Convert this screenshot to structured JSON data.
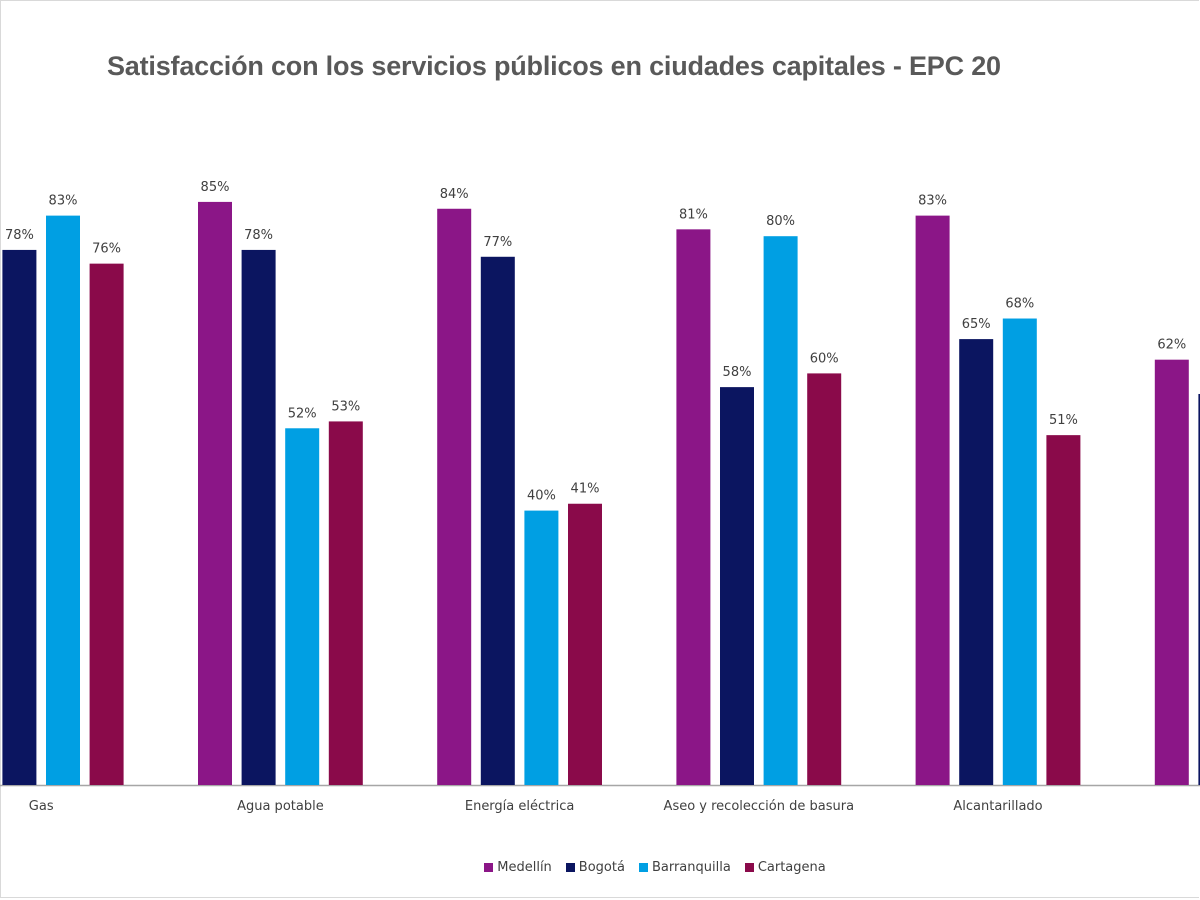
{
  "chart_data": {
    "type": "bar",
    "title": "Satisfacción con los servicios públicos en ciudades capitales - EPC 20",
    "categories": [
      "Gas",
      "Agua potable",
      "Energía eléctrica",
      "Aseo y recolección de basura",
      "Alcantarillado",
      ""
    ],
    "series": [
      {
        "name": "Medellín",
        "color": "#8B1687",
        "values": [
          null,
          85,
          84,
          81,
          83,
          62
        ]
      },
      {
        "name": "Bogotá",
        "color": "#0B1560",
        "values": [
          78,
          78,
          77,
          58,
          65,
          57
        ]
      },
      {
        "name": "Barranquilla",
        "color": "#009FE3",
        "values": [
          83,
          52,
          40,
          80,
          68,
          null
        ]
      },
      {
        "name": "Cartagena",
        "color": "#8A0A4A",
        "values": [
          76,
          53,
          41,
          60,
          51,
          null
        ]
      }
    ],
    "value_suffix": "%",
    "data_label_hidden": [
      [
        5,
        1
      ]
    ],
    "xlabel": "",
    "ylabel": "",
    "ylim": [
      0,
      100
    ],
    "grid": false,
    "legend": "bottom"
  }
}
